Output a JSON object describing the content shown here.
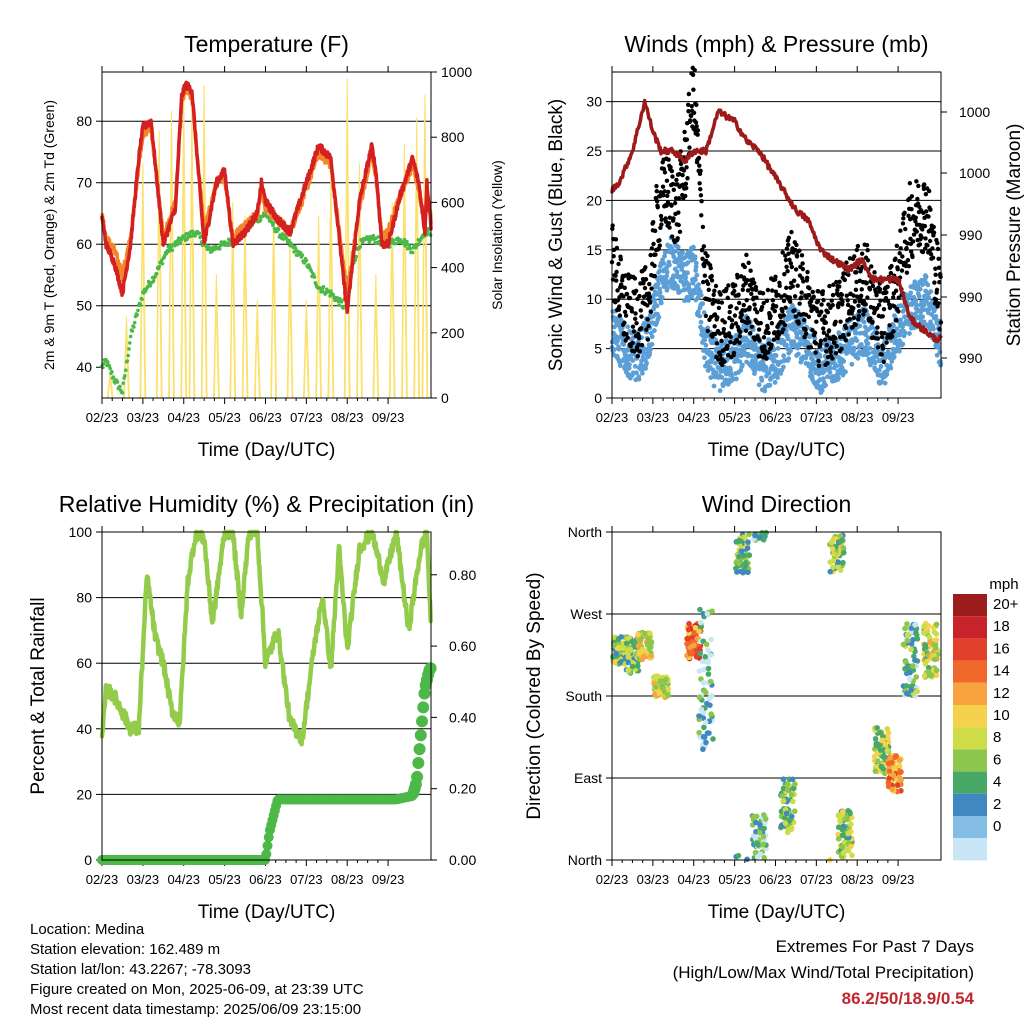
{
  "info": {
    "location": "Location: Medina",
    "elevation": "Station elevation: 162.489 m",
    "latlon": "Station lat/lon: 43.2267; -78.3093",
    "created": "Figure created on Mon, 2025-06-09, at 23:39 UTC",
    "recent": "Most recent data timestamp: 2025/06/09 23:15:00"
  },
  "extremes": {
    "title": "Extremes For Past 7 Days",
    "subtitle": "(High/Low/Max Wind/Total Precipitation)",
    "values": "86.2/50/18.9/0.54"
  },
  "colors": {
    "temp2m": "#d42020",
    "temp9m": "#f4862a",
    "dewpoint": "#4cb848",
    "solar": "#fbe06a",
    "wind": "#5b9fd6",
    "gust": "#000000",
    "pressure": "#9c1a1a",
    "rh": "#93cc4a",
    "precip": "#4cb848"
  },
  "chart_data": [
    {
      "type": "line",
      "title": "Temperature (F)",
      "xlabel": "Time (Day/UTC)",
      "ylabel": "2m & 9m T (Red, Orange) & 2m Td (Green)",
      "y2label": "Solar Insolation (Yellow)",
      "x_ticks": [
        "02/23",
        "03/23",
        "04/23",
        "05/23",
        "06/23",
        "07/23",
        "08/23",
        "09/23"
      ],
      "ylim": [
        35,
        88
      ],
      "y_ticks": [
        40,
        50,
        60,
        70,
        80
      ],
      "y2lim": [
        0,
        1000
      ],
      "y2_ticks": [
        0,
        200,
        400,
        600,
        800,
        1000
      ],
      "grid": true,
      "series": [
        {
          "axis": "left",
          "color": "temp2m",
          "x": [
            0,
            0.1,
            0.3,
            0.5,
            0.7,
            0.9,
            1.0,
            1.2,
            1.5,
            1.8,
            1.95,
            2.05,
            2.2,
            2.5,
            2.8,
            3.0,
            3.2,
            3.5,
            3.8,
            3.9,
            4.0,
            4.3,
            4.6,
            5.0,
            5.3,
            5.6,
            5.9,
            6.0,
            6.3,
            6.6,
            6.7,
            6.85,
            7.0,
            7.3,
            7.6,
            7.75,
            7.9,
            7.95,
            8.05
          ],
          "values": [
            64.5,
            60,
            57,
            52,
            60,
            74,
            79,
            80,
            60,
            66,
            84,
            86,
            85,
            60,
            70,
            72,
            60,
            62,
            65,
            70,
            67,
            64,
            62,
            70,
            76,
            74,
            55,
            49,
            67,
            76,
            72,
            60,
            60,
            68,
            74,
            70,
            62,
            70,
            63
          ]
        },
        {
          "axis": "left",
          "color": "temp9m",
          "x": [
            0,
            0.1,
            0.3,
            0.5,
            0.7,
            0.9,
            1.0,
            1.2,
            1.5,
            1.8,
            1.95,
            2.05,
            2.2,
            2.5,
            2.8,
            3.0,
            3.2,
            3.5,
            3.8,
            3.9,
            4.0,
            4.3,
            4.6,
            5.0,
            5.3,
            5.6,
            5.9,
            6.0,
            6.3,
            6.6,
            6.7,
            6.85,
            7.0,
            7.3,
            7.6,
            7.75,
            7.9,
            7.95,
            8.05
          ],
          "values": [
            64.5,
            61,
            59,
            55,
            61,
            73,
            78,
            79,
            61,
            67,
            83,
            85,
            84,
            62,
            70,
            71,
            61,
            63,
            65,
            69,
            66,
            64,
            62,
            69,
            75,
            73,
            57,
            52,
            66,
            75,
            71,
            61,
            62,
            68,
            73,
            69,
            63,
            69,
            64
          ]
        },
        {
          "axis": "left",
          "color": "dewpoint",
          "x": [
            0,
            0.1,
            0.3,
            0.5,
            0.7,
            1.0,
            1.3,
            1.6,
            2.0,
            2.3,
            2.6,
            3.0,
            3.3,
            3.6,
            4.0,
            4.3,
            4.6,
            5.0,
            5.3,
            5.6,
            5.9,
            6.0,
            6.3,
            6.6,
            7.0,
            7.3,
            7.6,
            7.9,
            8.05
          ],
          "values": [
            40,
            41,
            38,
            36,
            45,
            52,
            55,
            59,
            61,
            62,
            59,
            60,
            61,
            63,
            65,
            62,
            60,
            57,
            53,
            52,
            50,
            54,
            60,
            61,
            60,
            61,
            59,
            62,
            62
          ]
        },
        {
          "axis": "right",
          "color": "solar",
          "note": "daily insolation peaks",
          "x": [
            0.2,
            0.6,
            1.0,
            1.4,
            1.7,
            2.0,
            2.2,
            2.5,
            2.8,
            3.2,
            3.5,
            3.8,
            4.2,
            4.6,
            5.0,
            5.3,
            5.6,
            6.0,
            6.3,
            6.7,
            7.1,
            7.4,
            7.7,
            7.9
          ],
          "values": [
            80,
            250,
            720,
            820,
            880,
            920,
            900,
            960,
            380,
            600,
            560,
            300,
            580,
            480,
            300,
            560,
            700,
            980,
            720,
            380,
            600,
            780,
            860,
            930
          ]
        }
      ]
    },
    {
      "type": "line",
      "title": "Winds (mph) & Pressure (mb)",
      "xlabel": "Time (Day/UTC)",
      "ylabel": "Sonic Wind & Gust (Blue, Black)",
      "y2label": "Station Pressure (Maroon)",
      "x_ticks": [
        "02/23",
        "03/23",
        "04/23",
        "05/23",
        "06/23",
        "07/23",
        "08/23",
        "09/23"
      ],
      "ylim": [
        0,
        33
      ],
      "y_ticks": [
        0,
        5,
        10,
        15,
        20,
        25,
        30
      ],
      "y2_tick_labels": [
        "990",
        "990",
        "990",
        "1000",
        "1000"
      ],
      "grid": true,
      "series": [
        {
          "axis": "left",
          "color": "wind",
          "x": [
            0,
            0.3,
            0.6,
            0.9,
            1.1,
            1.4,
            1.8,
            2.0,
            2.3,
            2.6,
            3.0,
            3.3,
            3.7,
            4.0,
            4.4,
            4.8,
            5.1,
            5.5,
            5.9,
            6.2,
            6.6,
            7.0,
            7.3,
            7.7,
            8.0,
            8.1
          ],
          "values": [
            7,
            5,
            4,
            6,
            10,
            14,
            12,
            13,
            5,
            3,
            4,
            6,
            3,
            4,
            7,
            5,
            3,
            4,
            6,
            7,
            3,
            7,
            9,
            10,
            6,
            5
          ]
        },
        {
          "axis": "left",
          "color": "gust",
          "x": [
            0,
            0.3,
            0.6,
            0.9,
            1.1,
            1.3,
            1.6,
            1.8,
            2.0,
            2.3,
            2.6,
            3.0,
            3.3,
            3.7,
            4.0,
            4.4,
            4.8,
            5.1,
            5.5,
            5.9,
            6.2,
            6.6,
            7.0,
            7.3,
            7.7,
            8.0,
            8.1
          ],
          "values": [
            14,
            9,
            8,
            10,
            18,
            21,
            19,
            24,
            31,
            11,
            7,
            8,
            11,
            7,
            9,
            13,
            9,
            7,
            8,
            11,
            12,
            7,
            12,
            18,
            19,
            11,
            9
          ]
        },
        {
          "axis": "right",
          "color": "pressure",
          "note": "values shown by y position (right-axis labels 990–1000 mb)",
          "x": [
            0,
            0.2,
            0.5,
            0.8,
            1.0,
            1.2,
            1.5,
            1.8,
            2.0,
            2.3,
            2.6,
            3.0,
            3.3,
            3.6,
            3.9,
            4.2,
            4.5,
            4.8,
            5.1,
            5.4,
            5.8,
            6.1,
            6.4,
            6.7,
            7.0,
            7.3,
            7.6,
            7.9,
            8.1
          ],
          "values": [
            21,
            22,
            25,
            30,
            27,
            25,
            25,
            24,
            25,
            25,
            29,
            28,
            26,
            25,
            23,
            21,
            19,
            18,
            15,
            14,
            13,
            14,
            12,
            12,
            12,
            8,
            7,
            6,
            6
          ]
        }
      ]
    },
    {
      "type": "line",
      "title": "Relative Humidity (%) & Precipitation (in)",
      "xlabel": "Time (Day/UTC)",
      "ylabel": "Percent & Total Rainfall",
      "x_ticks": [
        "02/23",
        "03/23",
        "04/23",
        "05/23",
        "06/23",
        "07/23",
        "08/23",
        "09/23"
      ],
      "ylim": [
        0,
        100
      ],
      "y_ticks": [
        0,
        20,
        40,
        60,
        80,
        100
      ],
      "y2lim": [
        0,
        0.92
      ],
      "y2_ticks": [
        "0.00",
        "0.20",
        "0.40",
        "0.60",
        "0.80"
      ],
      "grid": true,
      "series": [
        {
          "axis": "left",
          "color": "rh",
          "x": [
            0,
            0.1,
            0.3,
            0.5,
            0.7,
            0.9,
            1.1,
            1.3,
            1.5,
            1.7,
            1.9,
            2.1,
            2.3,
            2.5,
            2.7,
            3.0,
            3.2,
            3.4,
            3.6,
            3.8,
            4.0,
            4.3,
            4.6,
            4.9,
            5.2,
            5.4,
            5.6,
            5.8,
            6.0,
            6.3,
            6.6,
            6.9,
            7.2,
            7.5,
            7.8,
            7.95,
            8.05
          ],
          "values": [
            37,
            52,
            50,
            45,
            40,
            40,
            87,
            68,
            60,
            46,
            42,
            85,
            100,
            98,
            72,
            100,
            100,
            75,
            100,
            100,
            60,
            70,
            42,
            37,
            66,
            80,
            58,
            95,
            64,
            95,
            100,
            85,
            100,
            70,
            95,
            100,
            70
          ]
        },
        {
          "axis": "right",
          "color": "precip",
          "x": [
            0,
            1,
            2,
            3,
            4.0,
            4.1,
            4.3,
            5,
            6,
            7.2,
            7.6,
            7.7,
            7.8,
            7.9,
            8.0,
            8.05
          ],
          "values": [
            0,
            0,
            0,
            0,
            0,
            0.08,
            0.17,
            0.17,
            0.17,
            0.17,
            0.18,
            0.22,
            0.35,
            0.48,
            0.53,
            0.54
          ]
        }
      ]
    },
    {
      "type": "scatter",
      "title": "Wind Direction",
      "xlabel": "Time (Day/UTC)",
      "ylabel": "Direction (Colored By Speed)",
      "x_ticks": [
        "02/23",
        "03/23",
        "04/23",
        "05/23",
        "06/23",
        "07/23",
        "08/23",
        "09/23"
      ],
      "y_ticks": [
        "North",
        "East",
        "South",
        "West",
        "North"
      ],
      "ylim": [
        0,
        360
      ],
      "legend": {
        "title": "mph",
        "placement": "right",
        "labels": [
          "20+",
          "18",
          "16",
          "14",
          "12",
          "10",
          "8",
          "6",
          "4",
          "2",
          "0"
        ],
        "colors": [
          "#9b1c1c",
          "#c8222a",
          "#e0402c",
          "#f0682a",
          "#f7a440",
          "#f4d24c",
          "#cfdc4a",
          "#8cc64c",
          "#48a868",
          "#3f88c2",
          "#84bde4",
          "#c8e6f6"
        ]
      },
      "clusters": [
        {
          "x": 0.2,
          "dir": 230,
          "spread": 15,
          "speed": 6
        },
        {
          "x": 0.5,
          "dir": 225,
          "spread": 20,
          "speed": 5
        },
        {
          "x": 0.8,
          "dir": 235,
          "spread": 15,
          "speed": 9
        },
        {
          "x": 1.2,
          "dir": 190,
          "spread": 12,
          "speed": 8
        },
        {
          "x": 2.0,
          "dir": 240,
          "spread": 20,
          "speed": 14
        },
        {
          "x": 2.3,
          "dir": 200,
          "spread": 80,
          "speed": 3
        },
        {
          "x": 3.2,
          "dir": 340,
          "spread": 25,
          "speed": 5
        },
        {
          "x": 3.6,
          "dir": 20,
          "spread": 30,
          "speed": 3
        },
        {
          "x": 4.3,
          "dir": 60,
          "spread": 30,
          "speed": 5
        },
        {
          "x": 5.5,
          "dir": 340,
          "spread": 25,
          "speed": 6
        },
        {
          "x": 5.7,
          "dir": 30,
          "spread": 25,
          "speed": 6
        },
        {
          "x": 6.6,
          "dir": 120,
          "spread": 25,
          "speed": 7
        },
        {
          "x": 6.9,
          "dir": 95,
          "spread": 20,
          "speed": 12
        },
        {
          "x": 7.3,
          "dir": 220,
          "spread": 40,
          "speed": 4
        },
        {
          "x": 7.8,
          "dir": 230,
          "spread": 30,
          "speed": 8
        }
      ]
    }
  ]
}
